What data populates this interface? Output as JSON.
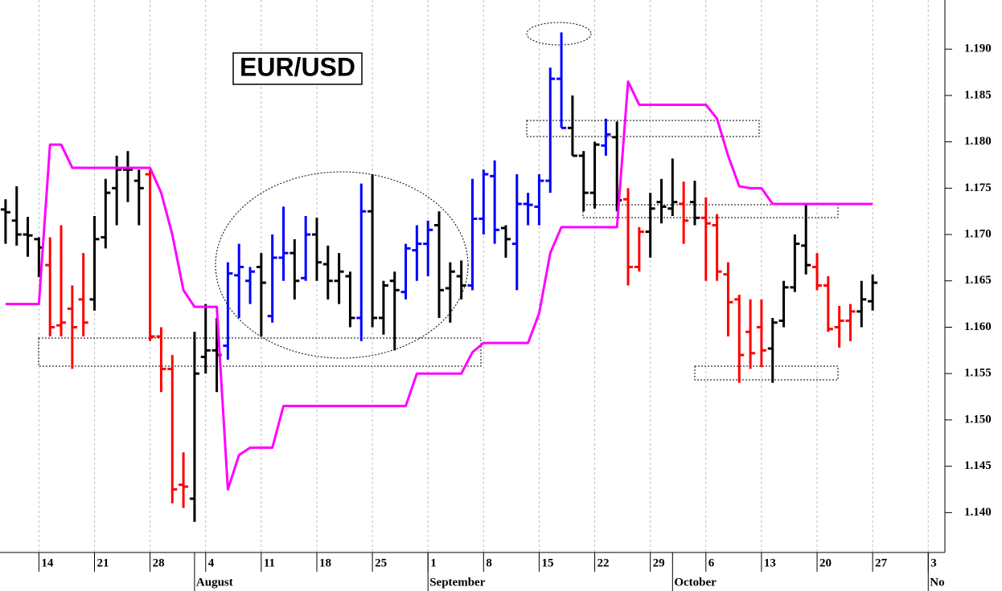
{
  "chart_data": {
    "type": "ohlc",
    "title": "EUR/USD",
    "categories": [
      null,
      null,
      null,
      "14",
      null,
      null,
      null,
      null,
      "21",
      null,
      null,
      null,
      null,
      "28",
      null,
      null,
      null,
      null,
      "4",
      null,
      null,
      null,
      null,
      "11",
      null,
      null,
      null,
      null,
      "18",
      null,
      null,
      null,
      null,
      "25",
      null,
      null,
      null,
      null,
      "1",
      null,
      null,
      null,
      null,
      "8",
      null,
      null,
      null,
      null,
      "15",
      null,
      null,
      null,
      null,
      "22",
      null,
      null,
      null,
      null,
      "29",
      null,
      null,
      null,
      null,
      "6",
      null,
      null,
      null,
      null,
      "13",
      null,
      null,
      null,
      null,
      "20",
      null,
      null,
      null,
      null,
      "27",
      null,
      null,
      null,
      null,
      "3",
      null
    ],
    "month_labels": [
      null,
      null,
      null,
      null,
      null,
      null,
      null,
      null,
      null,
      null,
      null,
      null,
      null,
      null,
      null,
      null,
      null,
      "August",
      null,
      null,
      null,
      null,
      null,
      null,
      null,
      null,
      null,
      null,
      null,
      null,
      null,
      null,
      null,
      null,
      null,
      null,
      null,
      null,
      "September",
      null,
      null,
      null,
      null,
      null,
      null,
      null,
      null,
      null,
      null,
      null,
      null,
      null,
      null,
      null,
      null,
      null,
      null,
      null,
      null,
      null,
      "October",
      null,
      null,
      null,
      null,
      null,
      null,
      null,
      null,
      null,
      null,
      null,
      null,
      null,
      null,
      null,
      null,
      null,
      null,
      null,
      null,
      null,
      null,
      "No",
      null
    ],
    "open": [
      1.1727,
      1.1715,
      1.17,
      1.1695,
      1.1667,
      1.1602,
      1.162,
      1.163,
      1.163,
      1.1697,
      1.175,
      1.177,
      1.1758,
      1.1765,
      1.159,
      1.1555,
      1.143,
      1.1415,
      1.1568,
      1.1575,
      1.158,
      1.1656,
      1.165,
      1.1665,
      1.1612,
      1.1675,
      1.168,
      1.1653,
      1.17,
      1.1668,
      1.165,
      1.1655,
      1.161,
      1.1725,
      1.161,
      1.165,
      1.1638,
      1.1683,
      1.169,
      1.171,
      1.1642,
      1.1655,
      1.1645,
      1.1717,
      1.1763,
      1.1707,
      1.169,
      1.1733,
      1.173,
      1.1758,
      1.1868,
      1.1815,
      1.1785,
      1.1745,
      1.1796,
      1.1805,
      1.1738,
      1.1665,
      1.1703,
      1.1735,
      1.1728,
      1.1733,
      1.1735,
      1.1718,
      1.171,
      1.1657,
      1.163,
      1.1595,
      1.16,
      1.1577,
      1.1607,
      1.1643,
      1.1688,
      1.1665,
      1.1645,
      1.16,
      1.1607,
      1.1617,
      1.1628,
      null,
      null,
      null,
      null,
      null,
      null
    ],
    "high": [
      1.1738,
      1.1752,
      1.1719,
      1.1697,
      1.1697,
      1.171,
      1.1645,
      1.168,
      1.172,
      1.176,
      1.1785,
      1.179,
      1.177,
      1.177,
      1.16,
      1.157,
      1.1465,
      1.1595,
      1.1625,
      1.161,
      1.167,
      1.169,
      1.1665,
      1.168,
      1.17,
      1.173,
      1.1695,
      1.172,
      1.1718,
      1.1688,
      1.168,
      1.166,
      1.1755,
      1.1765,
      1.165,
      1.166,
      1.169,
      1.171,
      1.1715,
      1.1725,
      1.167,
      1.1672,
      1.176,
      1.177,
      1.178,
      1.171,
      1.1765,
      1.1745,
      1.1765,
      1.188,
      1.1918,
      1.185,
      1.179,
      1.18,
      1.1825,
      1.1822,
      1.175,
      1.1708,
      1.1745,
      1.176,
      1.1782,
      1.1757,
      1.1758,
      1.174,
      1.1722,
      1.167,
      1.1635,
      1.163,
      1.163,
      1.161,
      1.165,
      1.17,
      1.1732,
      1.168,
      1.1655,
      1.1623,
      1.1625,
      1.165,
      1.1657,
      null,
      null,
      null,
      null,
      null,
      null
    ],
    "low": [
      1.169,
      1.1688,
      1.1676,
      1.1654,
      1.159,
      1.159,
      1.1555,
      1.159,
      1.1618,
      1.1685,
      1.171,
      1.1735,
      1.171,
      1.1585,
      1.153,
      1.141,
      1.1405,
      1.139,
      1.155,
      1.153,
      1.1565,
      1.161,
      1.1625,
      1.159,
      1.1605,
      1.165,
      1.163,
      1.165,
      1.165,
      1.163,
      1.1625,
      1.16,
      1.1585,
      1.16,
      1.1592,
      1.1575,
      1.163,
      1.165,
      1.1655,
      1.161,
      1.1605,
      1.163,
      1.164,
      1.17,
      1.169,
      1.1675,
      1.164,
      1.171,
      1.171,
      1.1745,
      1.1815,
      1.1785,
      1.1725,
      1.1728,
      1.1785,
      1.1725,
      1.1645,
      1.166,
      1.1675,
      1.1712,
      1.172,
      1.169,
      1.171,
      1.165,
      1.165,
      1.159,
      1.154,
      1.1555,
      1.1557,
      1.154,
      1.16,
      1.1638,
      1.1657,
      1.164,
      1.1595,
      1.1578,
      1.1585,
      1.16,
      1.1618,
      null,
      null,
      null,
      null,
      null,
      null
    ],
    "close": [
      1.1724,
      1.17,
      1.1699,
      1.1686,
      1.16,
      1.1605,
      1.16,
      1.1605,
      1.1695,
      1.1745,
      1.177,
      1.177,
      1.175,
      1.159,
      1.1555,
      1.1425,
      1.1428,
      1.155,
      1.1575,
      1.157,
      1.1658,
      1.1665,
      1.166,
      1.1648,
      1.1675,
      1.168,
      1.165,
      1.17,
      1.167,
      1.165,
      1.166,
      1.161,
      1.1725,
      1.161,
      1.1645,
      1.164,
      1.1685,
      1.169,
      1.1705,
      1.164,
      1.166,
      1.1645,
      1.1717,
      1.1765,
      1.1705,
      1.1695,
      1.1733,
      1.1732,
      1.1758,
      1.1868,
      1.1815,
      1.1785,
      1.1745,
      1.1797,
      1.1808,
      1.1737,
      1.1665,
      1.1703,
      1.1728,
      1.173,
      1.1735,
      1.1715,
      1.1718,
      1.1712,
      1.166,
      1.1627,
      1.157,
      1.1572,
      1.1575,
      1.1605,
      1.1643,
      1.169,
      1.1667,
      1.1645,
      1.1598,
      1.1607,
      1.1617,
      1.163,
      1.1648,
      null,
      null,
      null,
      null,
      null,
      null
    ],
    "bar_colors": [
      "black",
      "black",
      "black",
      "black",
      "red",
      "red",
      "red",
      "red",
      "black",
      "black",
      "black",
      "black",
      "black",
      "red",
      "red",
      "red",
      "red",
      "black",
      "black",
      "black",
      "blue",
      "blue",
      "blue",
      "black",
      "blue",
      "blue",
      "black",
      "blue",
      "black",
      "black",
      "black",
      "black",
      "blue",
      "black",
      "black",
      "black",
      "blue",
      "blue",
      "blue",
      "black",
      "black",
      "black",
      "blue",
      "blue",
      "blue",
      "black",
      "blue",
      "blue",
      "blue",
      "blue",
      "blue",
      "black",
      "black",
      "black",
      "blue",
      "black",
      "red",
      "red",
      "black",
      "black",
      "black",
      "red",
      "black",
      "red",
      "red",
      "red",
      "red",
      "red",
      "red",
      "black",
      "black",
      "black",
      "black",
      "red",
      "red",
      "red",
      "red",
      "black",
      "black",
      null,
      null,
      null,
      null,
      null,
      null
    ],
    "line": {
      "color": "#ff00ff",
      "values": [
        1.1625,
        1.1625,
        1.1625,
        1.1625,
        1.1797,
        1.1797,
        1.1772,
        1.1772,
        1.1772,
        1.1772,
        1.1772,
        1.1772,
        1.1772,
        1.1772,
        1.1745,
        1.17,
        1.164,
        1.1622,
        1.1622,
        1.1622,
        1.1425,
        1.1462,
        1.147,
        1.147,
        1.147,
        1.1515,
        1.1515,
        1.1515,
        1.1515,
        1.1515,
        1.1515,
        1.1515,
        1.1515,
        1.1515,
        1.1515,
        1.1515,
        1.1515,
        1.155,
        1.155,
        1.155,
        1.155,
        1.155,
        1.1573,
        1.1583,
        1.1583,
        1.1583,
        1.1583,
        1.1583,
        1.1615,
        1.168,
        1.1708,
        1.1708,
        1.1708,
        1.1708,
        1.1708,
        1.1708,
        1.1865,
        1.184,
        1.184,
        1.184,
        1.184,
        1.184,
        1.184,
        1.184,
        1.1825,
        1.1785,
        1.1752,
        1.175,
        1.175,
        1.1733,
        1.1733,
        1.1733,
        1.1733,
        1.1733,
        1.1733,
        1.1733,
        1.1733,
        1.1733,
        1.1733,
        null,
        null,
        null,
        null,
        null,
        null
      ]
    },
    "ylim": [
      1.1357,
      1.1953
    ],
    "yticks": [
      {
        "value": 1.14,
        "label": "1.140"
      },
      {
        "value": 1.145,
        "label": "1.145"
      },
      {
        "value": 1.15,
        "label": "1.150"
      },
      {
        "value": 1.155,
        "label": "1.155"
      },
      {
        "value": 1.16,
        "label": "1.160"
      },
      {
        "value": 1.165,
        "label": "1.165"
      },
      {
        "value": 1.17,
        "label": "1.170"
      },
      {
        "value": 1.175,
        "label": "1.175"
      },
      {
        "value": 1.18,
        "label": "1.180"
      },
      {
        "value": 1.185,
        "label": "1.185"
      },
      {
        "value": 1.19,
        "label": "1.190"
      }
    ],
    "grid": true
  }
}
